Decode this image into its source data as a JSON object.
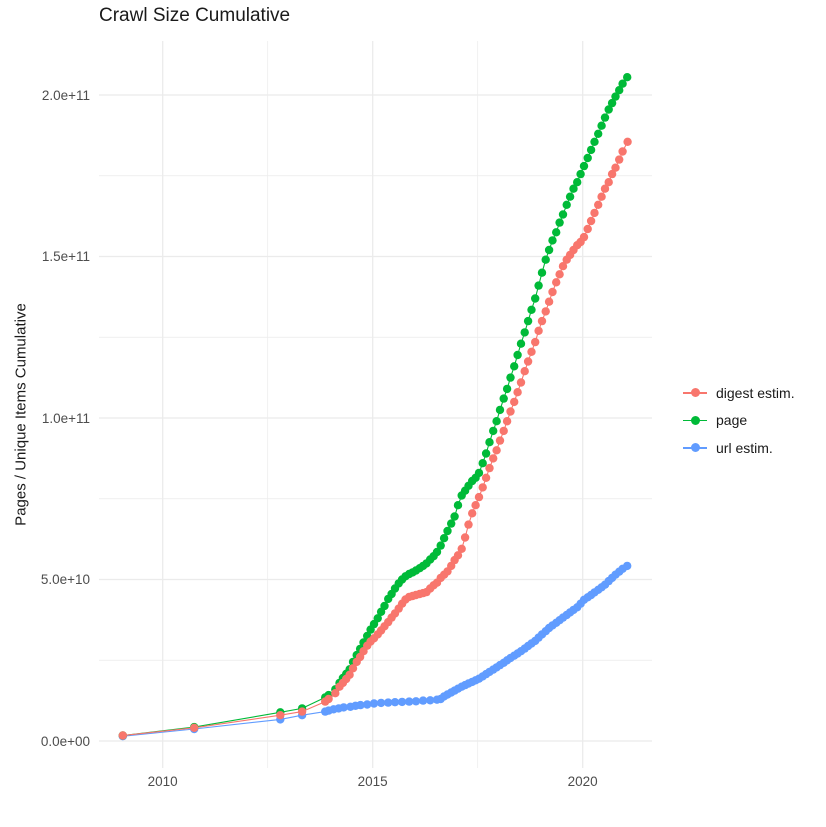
{
  "title": "Crawl Size Cumulative",
  "y_axis": {
    "title": "Pages / Unique Items Cumulative",
    "tick_labels": [
      "0.0e+00",
      "5.0e+10",
      "1.0e+11",
      "1.5e+11",
      "2.0e+11"
    ]
  },
  "x_axis": {
    "tick_labels": [
      "2010",
      "2015",
      "2020"
    ]
  },
  "legend": {
    "items": [
      {
        "label": "digest estim.",
        "color": "#F8766D"
      },
      {
        "label": "page",
        "color": "#00BA38"
      },
      {
        "label": "url estim.",
        "color": "#619CFF"
      }
    ]
  },
  "style_colors": {
    "background": "#ffffff",
    "grid": "#EBEBEB",
    "axis_text": "#4d4d4d",
    "title_text": "#1a1a1a"
  },
  "chart_data": {
    "type": "scatter",
    "title": "Crawl Size Cumulative",
    "xlabel": "",
    "ylabel": "Pages / Unique Items Cumulative",
    "x_unit": "year",
    "y_value_multiplier": 10000000000.0,
    "y_unit": "pages / unique items (values below are in units of 1e10)",
    "xlim": [
      2008.49,
      2021.65
    ],
    "ylim": [
      -0.84,
      21.67
    ],
    "x_ticks": [
      2010,
      2015,
      2020
    ],
    "x_minor_ticks": [
      2012.5,
      2017.5
    ],
    "y_ticks": [
      0,
      5,
      10,
      15,
      20
    ],
    "y_minor_ticks": [
      2.5,
      7.5,
      12.5,
      17.5
    ],
    "grid": true,
    "legend_position": "right",
    "series": [
      {
        "name": "digest estim.",
        "color": "#F8766D",
        "points": [
          [
            2009.05,
            0.17
          ],
          [
            2010.75,
            0.41
          ],
          [
            2012.8,
            0.8
          ],
          [
            2013.32,
            0.91
          ],
          [
            2013.87,
            1.22
          ],
          [
            2013.95,
            1.3
          ],
          [
            2014.11,
            1.48
          ],
          [
            2014.21,
            1.68
          ],
          [
            2014.29,
            1.8
          ],
          [
            2014.37,
            1.92
          ],
          [
            2014.45,
            2.05
          ],
          [
            2014.53,
            2.25
          ],
          [
            2014.62,
            2.45
          ],
          [
            2014.7,
            2.6
          ],
          [
            2014.78,
            2.78
          ],
          [
            2014.87,
            2.95
          ],
          [
            2014.95,
            3.08
          ],
          [
            2015.03,
            3.18
          ],
          [
            2015.12,
            3.3
          ],
          [
            2015.2,
            3.42
          ],
          [
            2015.28,
            3.55
          ],
          [
            2015.37,
            3.68
          ],
          [
            2015.45,
            3.82
          ],
          [
            2015.53,
            3.95
          ],
          [
            2015.62,
            4.1
          ],
          [
            2015.7,
            4.25
          ],
          [
            2015.78,
            4.38
          ],
          [
            2015.87,
            4.46
          ],
          [
            2015.95,
            4.49
          ],
          [
            2016.03,
            4.52
          ],
          [
            2016.12,
            4.55
          ],
          [
            2016.2,
            4.58
          ],
          [
            2016.28,
            4.61
          ],
          [
            2016.37,
            4.72
          ],
          [
            2016.45,
            4.82
          ],
          [
            2016.53,
            4.9
          ],
          [
            2016.62,
            5.05
          ],
          [
            2016.7,
            5.15
          ],
          [
            2016.78,
            5.25
          ],
          [
            2016.87,
            5.42
          ],
          [
            2016.95,
            5.6
          ],
          [
            2017.03,
            5.75
          ],
          [
            2017.12,
            5.95
          ],
          [
            2017.2,
            6.3
          ],
          [
            2017.28,
            6.7
          ],
          [
            2017.37,
            7.05
          ],
          [
            2017.45,
            7.3
          ],
          [
            2017.53,
            7.55
          ],
          [
            2017.62,
            7.85
          ],
          [
            2017.7,
            8.15
          ],
          [
            2017.78,
            8.45
          ],
          [
            2017.87,
            8.75
          ],
          [
            2017.95,
            9.0
          ],
          [
            2018.03,
            9.3
          ],
          [
            2018.12,
            9.6
          ],
          [
            2018.2,
            9.9
          ],
          [
            2018.28,
            10.2
          ],
          [
            2018.37,
            10.5
          ],
          [
            2018.45,
            10.8
          ],
          [
            2018.53,
            11.1
          ],
          [
            2018.62,
            11.45
          ],
          [
            2018.7,
            11.75
          ],
          [
            2018.78,
            12.05
          ],
          [
            2018.87,
            12.35
          ],
          [
            2018.95,
            12.7
          ],
          [
            2019.03,
            13.0
          ],
          [
            2019.12,
            13.3
          ],
          [
            2019.2,
            13.6
          ],
          [
            2019.28,
            13.9
          ],
          [
            2019.37,
            14.2
          ],
          [
            2019.45,
            14.45
          ],
          [
            2019.53,
            14.7
          ],
          [
            2019.62,
            14.9
          ],
          [
            2019.7,
            15.05
          ],
          [
            2019.78,
            15.2
          ],
          [
            2019.87,
            15.35
          ],
          [
            2019.95,
            15.45
          ],
          [
            2020.03,
            15.6
          ],
          [
            2020.12,
            15.85
          ],
          [
            2020.2,
            16.1
          ],
          [
            2020.28,
            16.35
          ],
          [
            2020.37,
            16.6
          ],
          [
            2020.45,
            16.85
          ],
          [
            2020.53,
            17.1
          ],
          [
            2020.62,
            17.3
          ],
          [
            2020.7,
            17.55
          ],
          [
            2020.78,
            17.75
          ],
          [
            2020.87,
            18.0
          ],
          [
            2020.95,
            18.25
          ],
          [
            2021.07,
            18.55
          ]
        ]
      },
      {
        "name": "page",
        "color": "#00BA38",
        "points": [
          [
            2009.05,
            0.17
          ],
          [
            2010.75,
            0.43
          ],
          [
            2012.8,
            0.89
          ],
          [
            2013.32,
            1.01
          ],
          [
            2013.87,
            1.35
          ],
          [
            2013.95,
            1.42
          ],
          [
            2014.11,
            1.6
          ],
          [
            2014.21,
            1.8
          ],
          [
            2014.29,
            1.95
          ],
          [
            2014.37,
            2.08
          ],
          [
            2014.45,
            2.22
          ],
          [
            2014.53,
            2.45
          ],
          [
            2014.62,
            2.66
          ],
          [
            2014.7,
            2.85
          ],
          [
            2014.78,
            3.05
          ],
          [
            2014.87,
            3.25
          ],
          [
            2014.95,
            3.45
          ],
          [
            2015.03,
            3.62
          ],
          [
            2015.12,
            3.8
          ],
          [
            2015.2,
            4.0
          ],
          [
            2015.28,
            4.18
          ],
          [
            2015.37,
            4.4
          ],
          [
            2015.45,
            4.55
          ],
          [
            2015.53,
            4.72
          ],
          [
            2015.62,
            4.88
          ],
          [
            2015.7,
            5.0
          ],
          [
            2015.78,
            5.1
          ],
          [
            2015.87,
            5.17
          ],
          [
            2015.95,
            5.22
          ],
          [
            2016.03,
            5.28
          ],
          [
            2016.12,
            5.35
          ],
          [
            2016.2,
            5.42
          ],
          [
            2016.28,
            5.5
          ],
          [
            2016.37,
            5.62
          ],
          [
            2016.45,
            5.72
          ],
          [
            2016.53,
            5.85
          ],
          [
            2016.62,
            6.05
          ],
          [
            2016.7,
            6.28
          ],
          [
            2016.78,
            6.5
          ],
          [
            2016.87,
            6.73
          ],
          [
            2016.95,
            6.95
          ],
          [
            2017.03,
            7.3
          ],
          [
            2017.12,
            7.6
          ],
          [
            2017.2,
            7.75
          ],
          [
            2017.28,
            7.9
          ],
          [
            2017.37,
            8.05
          ],
          [
            2017.45,
            8.15
          ],
          [
            2017.53,
            8.3
          ],
          [
            2017.62,
            8.6
          ],
          [
            2017.7,
            8.9
          ],
          [
            2017.78,
            9.25
          ],
          [
            2017.87,
            9.6
          ],
          [
            2017.95,
            9.9
          ],
          [
            2018.03,
            10.25
          ],
          [
            2018.12,
            10.6
          ],
          [
            2018.2,
            10.9
          ],
          [
            2018.28,
            11.25
          ],
          [
            2018.37,
            11.6
          ],
          [
            2018.45,
            11.95
          ],
          [
            2018.53,
            12.3
          ],
          [
            2018.62,
            12.65
          ],
          [
            2018.7,
            13.0
          ],
          [
            2018.78,
            13.35
          ],
          [
            2018.87,
            13.7
          ],
          [
            2018.95,
            14.1
          ],
          [
            2019.03,
            14.5
          ],
          [
            2019.12,
            14.9
          ],
          [
            2019.2,
            15.2
          ],
          [
            2019.28,
            15.5
          ],
          [
            2019.37,
            15.75
          ],
          [
            2019.45,
            16.05
          ],
          [
            2019.53,
            16.3
          ],
          [
            2019.62,
            16.6
          ],
          [
            2019.7,
            16.85
          ],
          [
            2019.78,
            17.1
          ],
          [
            2019.87,
            17.3
          ],
          [
            2019.95,
            17.55
          ],
          [
            2020.03,
            17.8
          ],
          [
            2020.12,
            18.05
          ],
          [
            2020.2,
            18.3
          ],
          [
            2020.28,
            18.55
          ],
          [
            2020.37,
            18.8
          ],
          [
            2020.45,
            19.05
          ],
          [
            2020.53,
            19.3
          ],
          [
            2020.62,
            19.55
          ],
          [
            2020.7,
            19.75
          ],
          [
            2020.78,
            19.95
          ],
          [
            2020.87,
            20.15
          ],
          [
            2020.95,
            20.35
          ],
          [
            2021.06,
            20.55
          ]
        ]
      },
      {
        "name": "url estim.",
        "color": "#619CFF",
        "points": [
          [
            2009.05,
            0.15
          ],
          [
            2010.75,
            0.37
          ],
          [
            2012.8,
            0.67
          ],
          [
            2013.32,
            0.8
          ],
          [
            2013.87,
            0.91
          ],
          [
            2013.95,
            0.94
          ],
          [
            2014.07,
            0.98
          ],
          [
            2014.19,
            1.01
          ],
          [
            2014.31,
            1.04
          ],
          [
            2014.47,
            1.06
          ],
          [
            2014.59,
            1.09
          ],
          [
            2014.71,
            1.11
          ],
          [
            2014.87,
            1.13
          ],
          [
            2015.03,
            1.16
          ],
          [
            2015.2,
            1.18
          ],
          [
            2015.37,
            1.19
          ],
          [
            2015.53,
            1.2
          ],
          [
            2015.7,
            1.21
          ],
          [
            2015.87,
            1.22
          ],
          [
            2016.03,
            1.23
          ],
          [
            2016.2,
            1.25
          ],
          [
            2016.37,
            1.26
          ],
          [
            2016.53,
            1.28
          ],
          [
            2016.62,
            1.3
          ],
          [
            2016.7,
            1.38
          ],
          [
            2016.78,
            1.44
          ],
          [
            2016.87,
            1.5
          ],
          [
            2016.95,
            1.56
          ],
          [
            2017.03,
            1.62
          ],
          [
            2017.12,
            1.68
          ],
          [
            2017.2,
            1.73
          ],
          [
            2017.28,
            1.78
          ],
          [
            2017.37,
            1.83
          ],
          [
            2017.45,
            1.88
          ],
          [
            2017.53,
            1.93
          ],
          [
            2017.62,
            2.0
          ],
          [
            2017.7,
            2.07
          ],
          [
            2017.78,
            2.14
          ],
          [
            2017.87,
            2.21
          ],
          [
            2017.95,
            2.28
          ],
          [
            2018.03,
            2.35
          ],
          [
            2018.12,
            2.42
          ],
          [
            2018.2,
            2.5
          ],
          [
            2018.28,
            2.57
          ],
          [
            2018.37,
            2.64
          ],
          [
            2018.45,
            2.71
          ],
          [
            2018.53,
            2.78
          ],
          [
            2018.62,
            2.86
          ],
          [
            2018.7,
            2.94
          ],
          [
            2018.78,
            3.02
          ],
          [
            2018.87,
            3.1
          ],
          [
            2018.95,
            3.2
          ],
          [
            2019.03,
            3.3
          ],
          [
            2019.12,
            3.4
          ],
          [
            2019.2,
            3.5
          ],
          [
            2019.28,
            3.58
          ],
          [
            2019.37,
            3.66
          ],
          [
            2019.45,
            3.74
          ],
          [
            2019.53,
            3.82
          ],
          [
            2019.62,
            3.9
          ],
          [
            2019.7,
            3.98
          ],
          [
            2019.78,
            4.06
          ],
          [
            2019.87,
            4.14
          ],
          [
            2019.95,
            4.25
          ],
          [
            2020.03,
            4.37
          ],
          [
            2020.12,
            4.45
          ],
          [
            2020.2,
            4.52
          ],
          [
            2020.28,
            4.6
          ],
          [
            2020.37,
            4.68
          ],
          [
            2020.45,
            4.76
          ],
          [
            2020.53,
            4.84
          ],
          [
            2020.62,
            4.95
          ],
          [
            2020.7,
            5.05
          ],
          [
            2020.78,
            5.15
          ],
          [
            2020.87,
            5.24
          ],
          [
            2020.95,
            5.33
          ],
          [
            2021.06,
            5.42
          ]
        ]
      }
    ]
  }
}
